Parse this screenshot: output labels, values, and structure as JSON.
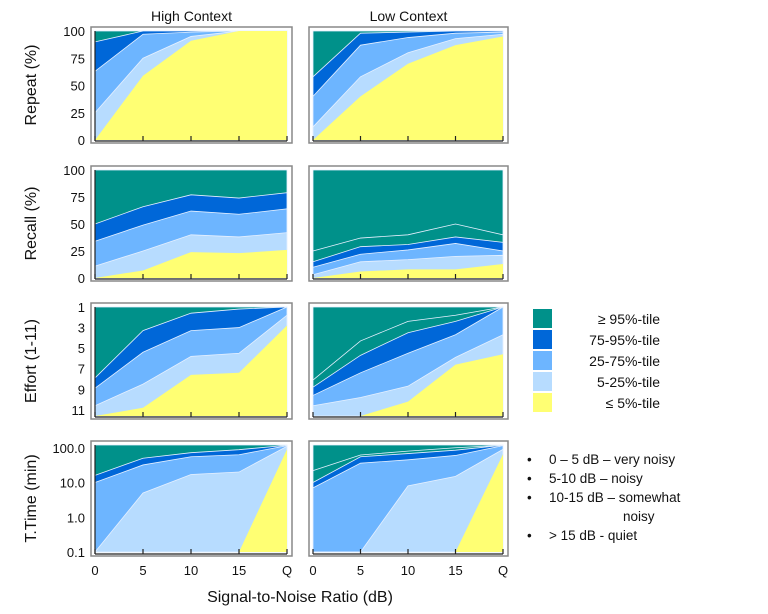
{
  "chart_data": {
    "type": "area",
    "title": "",
    "xlabel": "Signal-to-Noise Ratio (dB)",
    "x_ticks": [
      "0",
      "5",
      "10",
      "15",
      "Q"
    ],
    "columns": [
      "High Context",
      "Low Context"
    ],
    "band_names": [
      "≤ 5%-tile",
      "5-25%-tile",
      "25-75%-tile",
      "75-95%-tile",
      "≥ 95%-tile"
    ],
    "band_colors": [
      "#ffff73",
      "#b7dcff",
      "#6db5ff",
      "#0067d8",
      "#00918a"
    ],
    "rows": [
      {
        "ylabel": "Repeat (%)",
        "scale": "linear",
        "ylim": [
          0,
          100
        ],
        "inverted": false,
        "y_ticks": [
          "0",
          "25",
          "50",
          "75",
          "100"
        ],
        "y_tick_values": [
          0,
          25,
          50,
          75,
          100
        ],
        "panels": [
          {
            "context": "High Context",
            "boundaries": [
              [
                0,
                59,
                91,
                100,
                100
              ],
              [
                25,
                75,
                95,
                100,
                100
              ],
              [
                63,
                97,
                99,
                100,
                100
              ],
              [
                90,
                100,
                100,
                100,
                100
              ],
              [
                100,
                100,
                100,
                100,
                100
              ]
            ]
          },
          {
            "context": "Low Context",
            "boundaries": [
              [
                0,
                40,
                70,
                87,
                95
              ],
              [
                12,
                58,
                80,
                93,
                97
              ],
              [
                40,
                87,
                94,
                98,
                99
              ],
              [
                58,
                98,
                99,
                100,
                100
              ],
              [
                100,
                100,
                100,
                100,
                100
              ]
            ]
          }
        ]
      },
      {
        "ylabel": "Recall (%)",
        "scale": "linear",
        "ylim": [
          0,
          100
        ],
        "inverted": false,
        "y_ticks": [
          "0",
          "25",
          "50",
          "75",
          "100"
        ],
        "y_tick_values": [
          0,
          25,
          50,
          75,
          100
        ],
        "panels": [
          {
            "context": "High Context",
            "boundaries": [
              [
                0,
                7,
                24,
                23,
                26
              ],
              [
                11,
                25,
                40,
                38,
                42
              ],
              [
                34,
                49,
                62,
                59,
                64
              ],
              [
                50,
                66,
                77,
                74,
                79
              ],
              [
                100,
                100,
                100,
                100,
                100
              ]
            ]
          },
          {
            "context": "Low Context",
            "boundaries": [
              [
                0,
                6,
                8,
                8,
                13
              ],
              [
                3,
                15,
                17,
                20,
                21
              ],
              [
                10,
                22,
                26,
                32,
                25
              ],
              [
                15,
                29,
                31,
                38,
                33
              ],
              [
                25,
                37,
                40,
                50,
                40
              ]
            ]
          }
        ]
      },
      {
        "ylabel": "Effort (1-11)",
        "scale": "linear",
        "ylim": [
          1,
          11.6
        ],
        "inverted": true,
        "y_ticks": [
          "1",
          "3",
          "5",
          "7",
          "9",
          "11"
        ],
        "y_tick_values": [
          1,
          3,
          5,
          7,
          9,
          11
        ],
        "panels": [
          {
            "context": "High Context",
            "boundaries": [
              [
                11.6,
                10.8,
                7.6,
                7.4,
                2.8
              ],
              [
                10.6,
                8.5,
                5.8,
                5.5,
                1.8
              ],
              [
                8.9,
                5.4,
                3.3,
                3.0,
                1.0
              ],
              [
                7.9,
                3.3,
                1.6,
                1.2,
                1.0
              ],
              [
                1,
                1,
                1,
                1,
                1
              ]
            ]
          },
          {
            "context": "Low Context",
            "boundaries": [
              [
                11.6,
                11.6,
                10.2,
                6.6,
                5.6
              ],
              [
                10.6,
                9.8,
                8.7,
                5.9,
                3.7
              ],
              [
                9.6,
                7.4,
                5.5,
                3.7,
                1.0
              ],
              [
                8.8,
                5.7,
                3.5,
                2.4,
                1.0
              ],
              [
                8.1,
                4.3,
                2.4,
                1.8,
                1.0
              ]
            ]
          }
        ]
      },
      {
        "ylabel": "T.Time (min)",
        "scale": "log",
        "ylim": [
          0.1,
          120
        ],
        "inverted": false,
        "y_ticks": [
          "0.1",
          "1.0",
          "10.0",
          "100.0"
        ],
        "y_tick_values": [
          0.1,
          1,
          10,
          100
        ],
        "panels": [
          {
            "context": "High Context",
            "boundaries": [
              [
                0.1,
                0.1,
                0.1,
                0.1,
                90
              ],
              [
                0.1,
                5,
                17,
                20,
                110
              ],
              [
                10,
                32,
                55,
                63,
                115
              ],
              [
                16,
                50,
                72,
                88,
                118
              ],
              [
                120,
                120,
                120,
                120,
                120
              ]
            ]
          },
          {
            "context": "Low Context",
            "boundaries": [
              [
                0.1,
                0.1,
                0.1,
                0.1,
                65
              ],
              [
                0.1,
                0.1,
                8,
                15,
                90
              ],
              [
                7,
                36,
                45,
                60,
                115
              ],
              [
                10,
                55,
                68,
                85,
                118
              ],
              [
                22,
                62,
                80,
                100,
                118
              ]
            ]
          }
        ]
      }
    ],
    "legend": {
      "placement": "right",
      "entries": [
        {
          "label": "≥ 95%-tile",
          "color": "#00918a"
        },
        {
          "label": "75-95%-tile",
          "color": "#0067d8"
        },
        {
          "label": "25-75%-tile",
          "color": "#6db5ff"
        },
        {
          "label": "5-25%-tile",
          "color": "#b7dcff"
        },
        {
          "label": "≤ 5%-tile",
          "color": "#ffff73"
        }
      ]
    },
    "annotations": [
      "0 – 5 dB – very noisy",
      "5-10 dB – noisy",
      "10-15 dB – somewhat",
      "noisy",
      "> 15 dB - quiet"
    ]
  }
}
